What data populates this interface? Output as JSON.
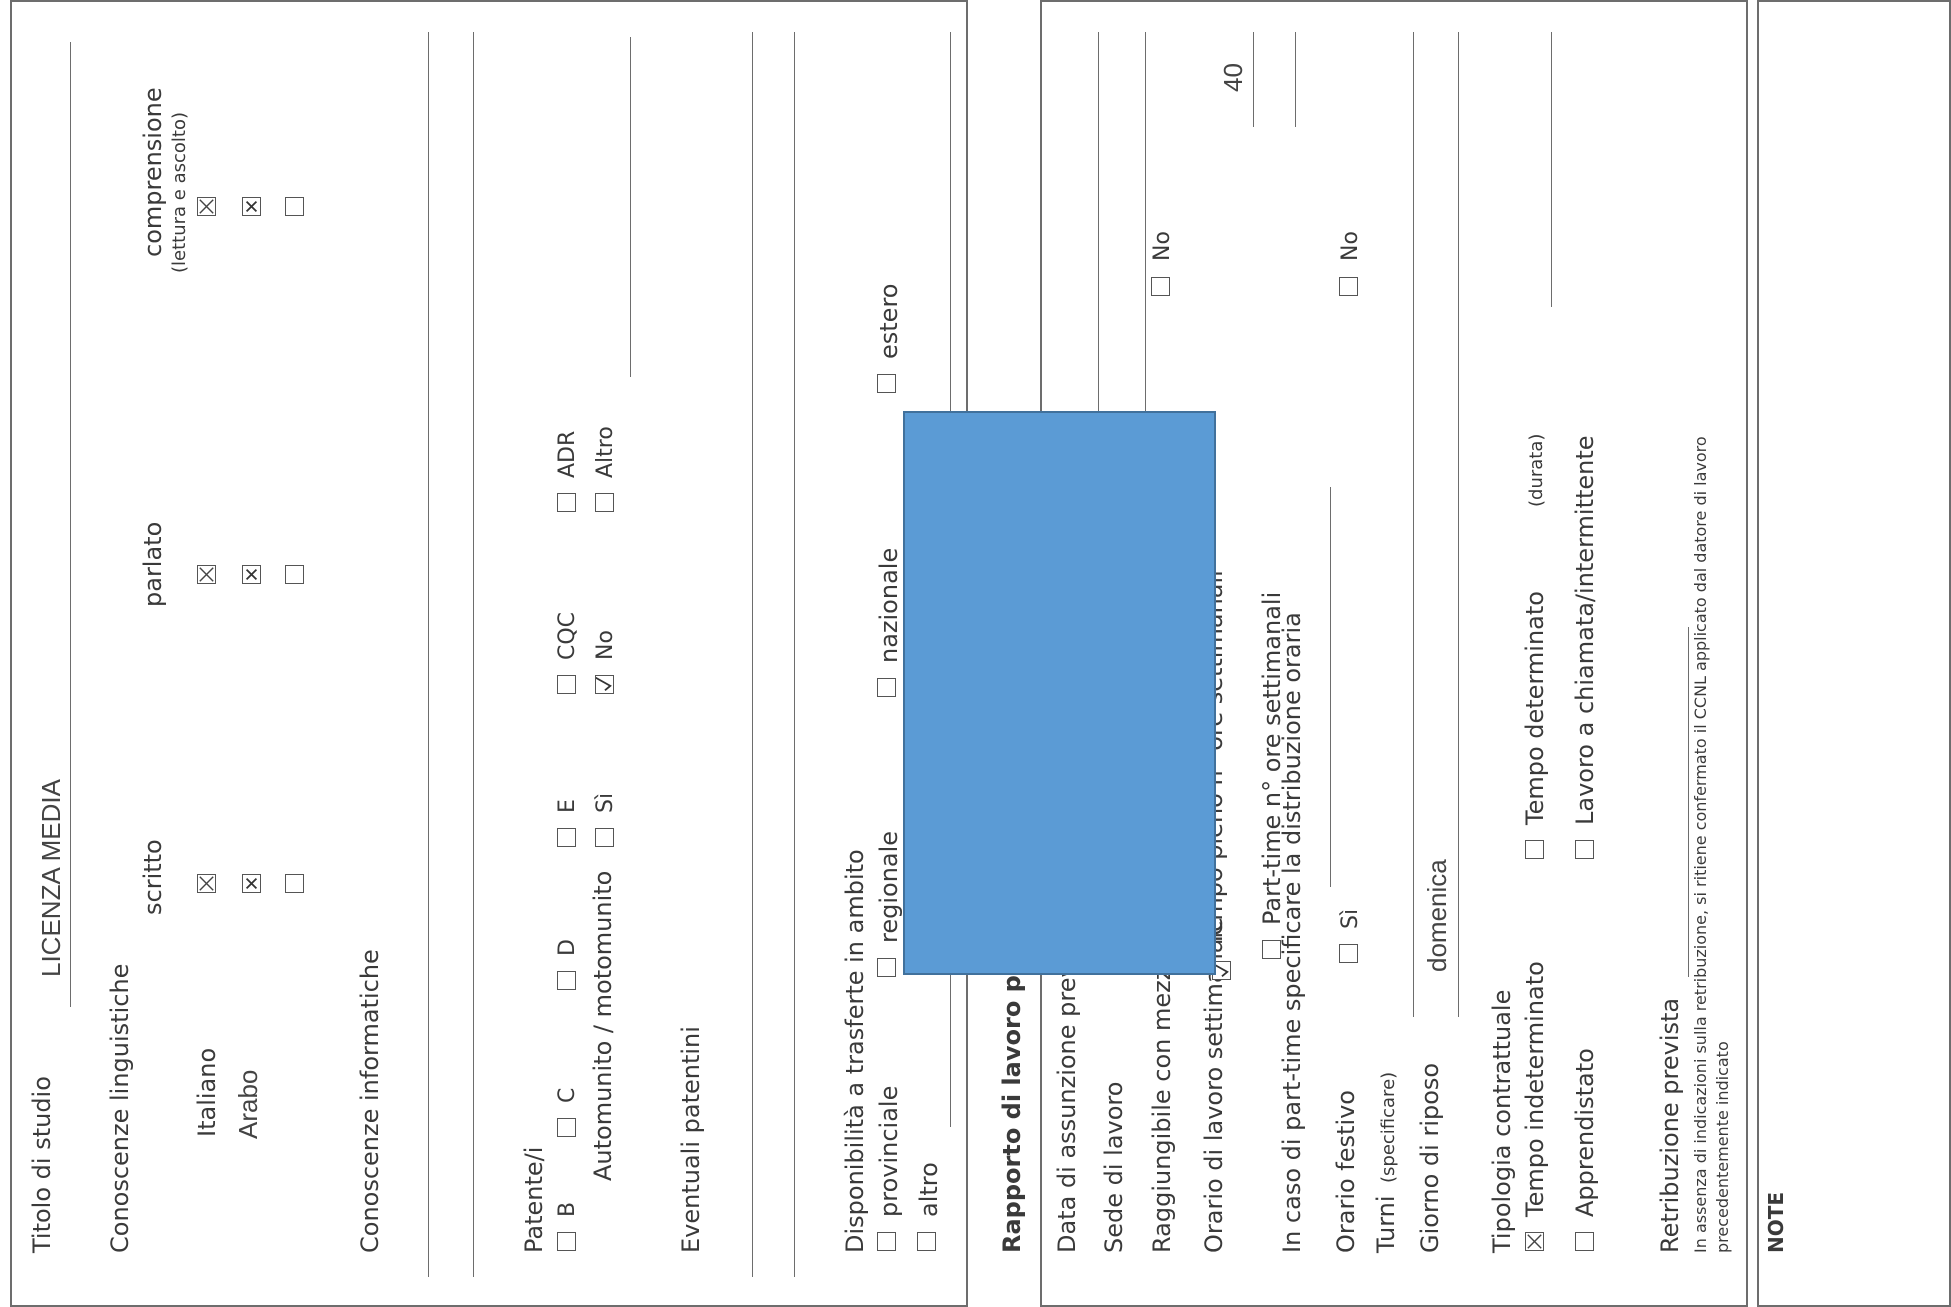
{
  "education": {
    "label": "Titolo di studio",
    "value": "LICENZA MEDIA"
  },
  "languages": {
    "label": "Conoscenze linguistiche",
    "columns": {
      "written": "scritto",
      "spoken": "parlato",
      "comprehension": "comprensione",
      "comprehension_note": "(lettura e ascolto)"
    },
    "rows": [
      {
        "name": "Italiano",
        "written": true,
        "spoken": true,
        "comprehension": true
      },
      {
        "name": "Arabo",
        "written": true,
        "spoken": true,
        "comprehension": true
      },
      {
        "name": "",
        "written": false,
        "spoken": false,
        "comprehension": false
      }
    ]
  },
  "computer_skills": {
    "label": "Conoscenze informatiche"
  },
  "licenses": {
    "label": "Patente/i",
    "types": [
      {
        "label": "B",
        "checked": false
      },
      {
        "label": "C",
        "checked": false
      },
      {
        "label": "D",
        "checked": false
      },
      {
        "label": "E",
        "checked": false
      },
      {
        "label": "CQC",
        "checked": false
      },
      {
        "label": "ADR",
        "checked": false
      }
    ],
    "vehicle_label": "Automunito / motomunito",
    "vehicle_options": [
      {
        "label": "Sì",
        "checked": false
      },
      {
        "label": "No",
        "checked": true
      },
      {
        "label": "Altro",
        "checked": false
      }
    ],
    "certificates_label": "Eventuali patentini"
  },
  "travel": {
    "label": "Disponibilità a trasferte in ambito",
    "options": [
      {
        "label": "provinciale",
        "checked": false
      },
      {
        "label": "regionale",
        "checked": false
      },
      {
        "label": "nazionale",
        "checked": false
      },
      {
        "label": "estero",
        "checked": false
      },
      {
        "label": "altro",
        "checked": false
      }
    ]
  },
  "job": {
    "heading": "Rapporto di lavoro prop",
    "hire_date_label": "Data di assunzione previst",
    "workplace_label": "Sede di lavoro",
    "transport_label": "Raggiungibile con mezzo p",
    "transport_no": "No",
    "hours_label": "Orario di lavoro settimanale",
    "fulltime_label": "Tempo pieno n° ore settimanali",
    "fulltime_value": "40",
    "fulltime_checked": true,
    "parttime_label": "Part-time n° ore settimanali",
    "parttime_checked": false,
    "parttime_distribution_label": "In caso di part-time specificare la distribuzione oraria",
    "holiday_label": "Orario festivo",
    "holiday_yes": "Sì",
    "holiday_no": "No",
    "shifts_label": "Turni",
    "shifts_note": "(specificare)",
    "rest_day_label": "Giorno di riposo",
    "rest_day_value": "domenica",
    "contract_label": "Tipologia contrattuale",
    "contract_options": [
      {
        "label": "Tempo indeterminato",
        "checked": true
      },
      {
        "label": "Tempo determinato",
        "note": "(durata)",
        "checked": false
      },
      {
        "label": "Apprendistato",
        "checked": false
      },
      {
        "label": "Lavoro a chiamata/intermittente",
        "checked": false
      }
    ],
    "salary_label": "Retribuzione prevista",
    "salary_note_1": "In assenza di indicazioni sulla retribuzione, si ritiene confermato il CCNL applicato dal datore di lavoro",
    "salary_note_2": "precedentemente indicato"
  },
  "notes": {
    "label": "NOTE"
  },
  "colors": {
    "redaction": "#5b9bd5",
    "redaction_border": "#41719c",
    "lines": "#6d6d6d"
  }
}
